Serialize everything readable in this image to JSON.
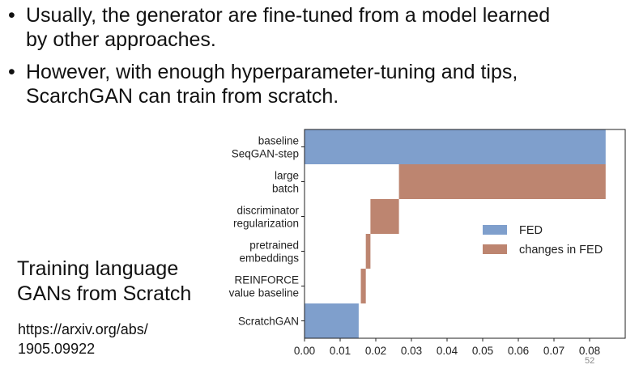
{
  "bullets": [
    {
      "lines": [
        "Usually, the generator are fine-tuned from a model learned",
        "by other approaches."
      ]
    },
    {
      "lines": [
        "However, with enough hyperparameter-tuning and tips,",
        "ScarchGAN can train from scratch."
      ]
    }
  ],
  "bullet_glyph": "•",
  "side_title_lines": [
    "Training language",
    "GANs from Scratch"
  ],
  "side_link_lines": [
    "https://arxiv.org/abs/",
    "1905.09922"
  ],
  "page_number": "52",
  "colors": {
    "fed": "#7f9fcc",
    "changes": "#bd8570"
  },
  "chart_data": {
    "type": "bar",
    "orientation": "horizontal-waterfall",
    "categories": [
      [
        "baseline",
        "SeqGAN-step"
      ],
      [
        "large",
        "batch"
      ],
      [
        "discriminator",
        "regularization"
      ],
      [
        "pretrained",
        "embeddings"
      ],
      [
        "REINFORCE",
        "value baseline"
      ],
      [
        "ScratchGAN"
      ]
    ],
    "bars": [
      {
        "start": 0.0,
        "end": 0.0845,
        "kind": "fed"
      },
      {
        "start": 0.0265,
        "end": 0.0845,
        "kind": "changes"
      },
      {
        "start": 0.0185,
        "end": 0.0265,
        "kind": "changes"
      },
      {
        "start": 0.0172,
        "end": 0.0185,
        "kind": "changes"
      },
      {
        "start": 0.0158,
        "end": 0.0172,
        "kind": "changes"
      },
      {
        "start": 0.0,
        "end": 0.0152,
        "kind": "fed"
      }
    ],
    "x_ticks": [
      "0.00",
      "0.01",
      "0.02",
      "0.03",
      "0.04",
      "0.05",
      "0.06",
      "0.07",
      "0.08"
    ],
    "xlim": [
      0.0,
      0.09
    ],
    "legend": [
      {
        "label": "FED",
        "kind": "fed"
      },
      {
        "label": "changes in FED",
        "kind": "changes"
      }
    ],
    "legend_position": "right",
    "grid": false
  }
}
